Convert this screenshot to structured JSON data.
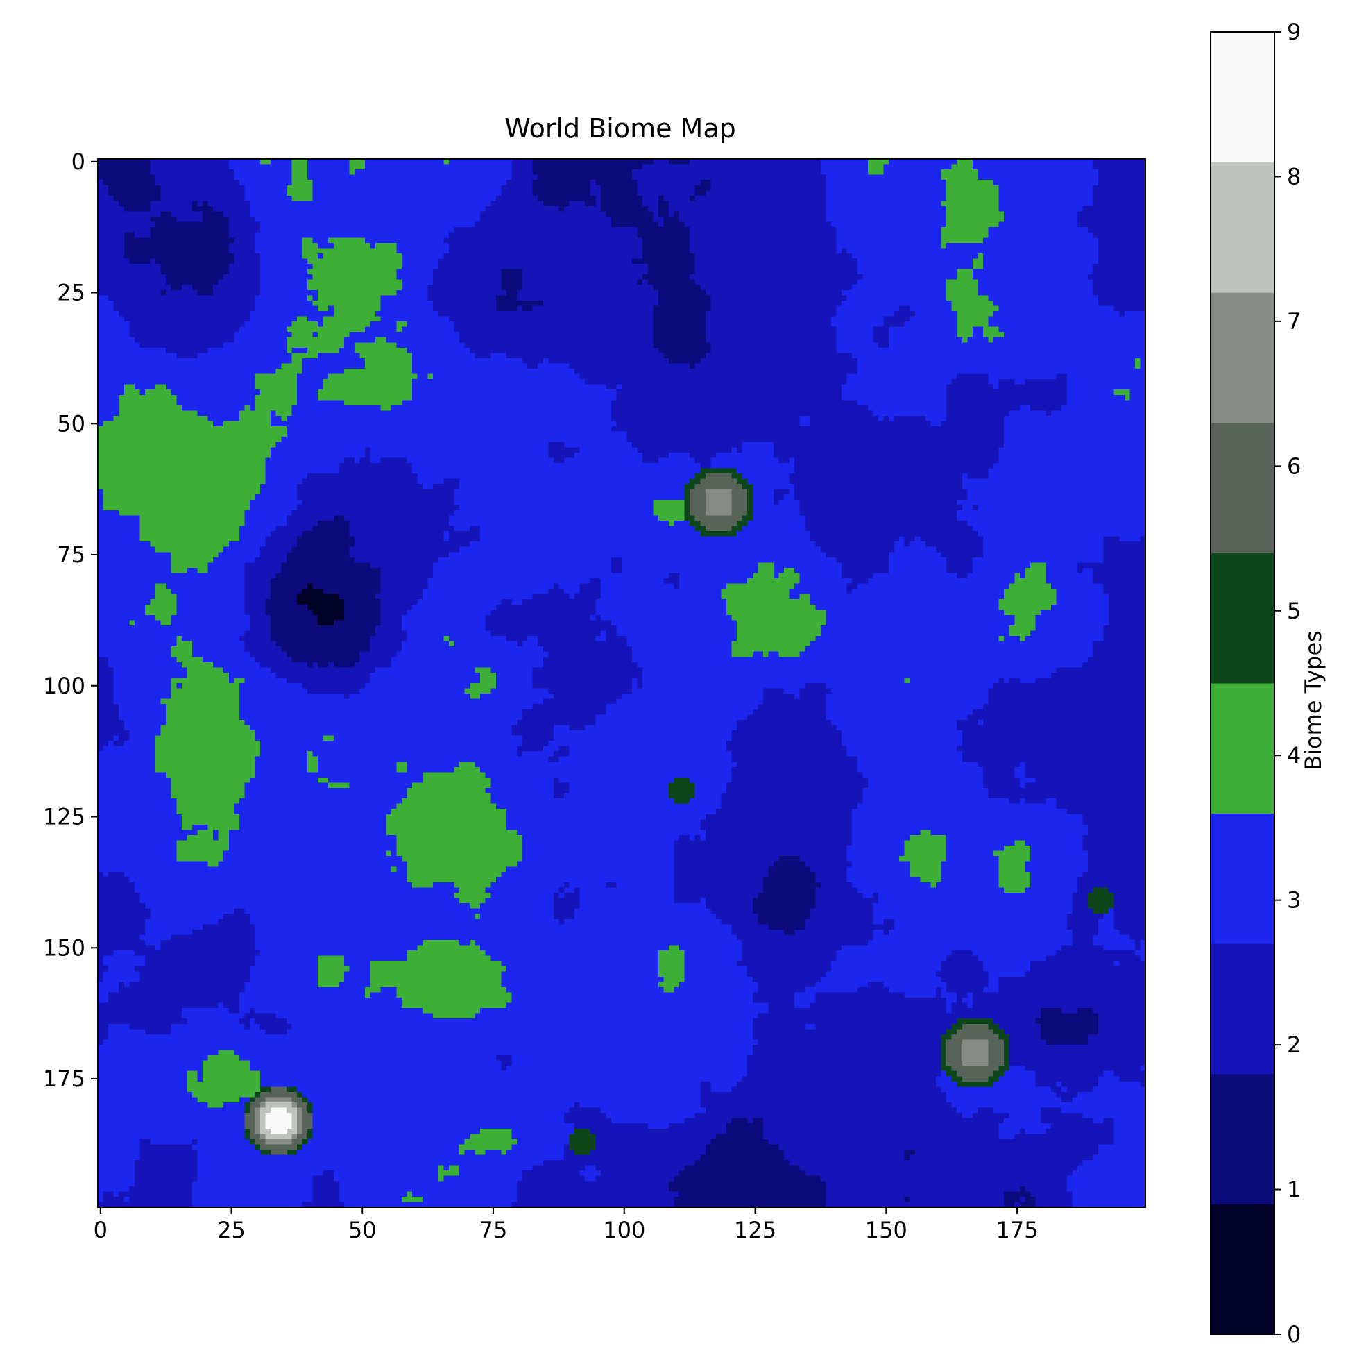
{
  "chart_data": {
    "type": "heatmap",
    "title": "World Biome Map",
    "xlabel": "",
    "ylabel": "",
    "grid_size": [
      200,
      200
    ],
    "x_ticks": [
      0,
      25,
      50,
      75,
      100,
      125,
      150,
      175
    ],
    "y_ticks": [
      0,
      25,
      50,
      75,
      100,
      125,
      150,
      175
    ],
    "xlim": [
      -0.5,
      199.5
    ],
    "ylim": [
      199.5,
      -0.5
    ],
    "y_axis_inverted": true,
    "grid": false,
    "colorbar": {
      "label": "Biome Types",
      "range": [
        0,
        9
      ],
      "ticks": [
        0,
        1,
        2,
        3,
        4,
        5,
        6,
        7,
        8,
        9
      ],
      "levels": [
        {
          "index": 0,
          "color": "#010127"
        },
        {
          "index": 1,
          "color": "#0b0b7c"
        },
        {
          "index": 2,
          "color": "#1414b8"
        },
        {
          "index": 3,
          "color": "#1d26ee"
        },
        {
          "index": 4,
          "color": "#3daf36"
        },
        {
          "index": 5,
          "color": "#0d4719"
        },
        {
          "index": 6,
          "color": "#586359"
        },
        {
          "index": 7,
          "color": "#878b85"
        },
        {
          "index": 8,
          "color": "#bec3be"
        },
        {
          "index": 9,
          "color": "#f8f9f8"
        }
      ]
    },
    "approximate_regions": {
      "description_units": "grid cells (x = column, y = row)",
      "mountain_peaks": [
        {
          "x": 118,
          "y": 65,
          "peak_value": 7
        },
        {
          "x": 167,
          "y": 170,
          "peak_value": 7
        },
        {
          "x": 34,
          "y": 183,
          "peak_value": 9
        }
      ],
      "forest_patches": [
        {
          "x": 111,
          "y": 120
        },
        {
          "x": 92,
          "y": 187
        },
        {
          "x": 191,
          "y": 141
        }
      ],
      "deep_water_centers": [
        {
          "x": 10,
          "y": 10
        },
        {
          "x": 75,
          "y": 25
        },
        {
          "x": 42,
          "y": 80
        },
        {
          "x": 130,
          "y": 140
        },
        {
          "x": 120,
          "y": 196
        },
        {
          "x": 187,
          "y": 165
        }
      ],
      "grassland_centers": [
        {
          "x": 60,
          "y": 32
        },
        {
          "x": 168,
          "y": 25
        },
        {
          "x": 15,
          "y": 60
        },
        {
          "x": 108,
          "y": 70
        },
        {
          "x": 85,
          "y": 125
        },
        {
          "x": 165,
          "y": 135
        },
        {
          "x": 10,
          "y": 120
        },
        {
          "x": 70,
          "y": 180
        }
      ]
    }
  }
}
